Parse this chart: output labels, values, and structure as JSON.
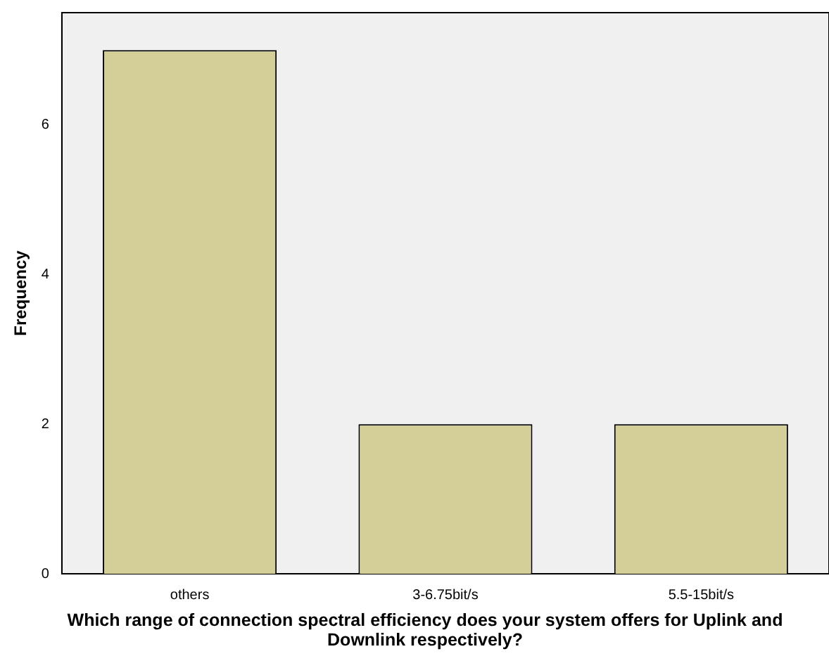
{
  "chart_data": {
    "type": "bar",
    "xlabel": "Which range of connection spectral efficiency does your system offers for Uplink and Downlink respectively?",
    "ylabel": "Frequency",
    "categories": [
      "others",
      "3-6.75bit/s",
      "5.5-15bit/s"
    ],
    "values": [
      7,
      2,
      2
    ],
    "color": "#d4cf98",
    "ylim": [
      0,
      7.5
    ],
    "yticks": [
      0,
      2,
      4,
      6
    ],
    "grid": false,
    "legend": false
  }
}
